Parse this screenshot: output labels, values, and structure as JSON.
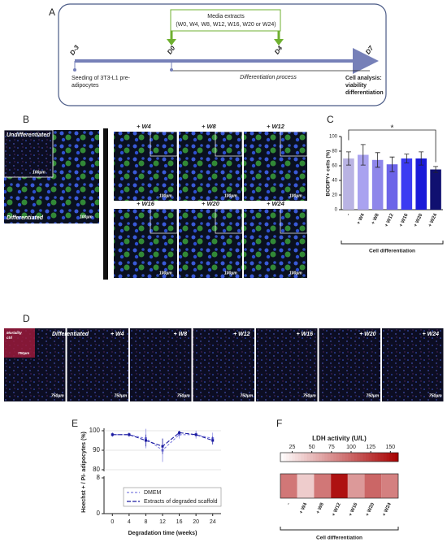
{
  "panel_labels": [
    "A",
    "B",
    "C",
    "D",
    "E",
    "F"
  ],
  "timeline": {
    "media_title": "Media extracts",
    "media_list": "(W0, W4, W8, W12, W16, W20 or W24)",
    "days": [
      "D-3",
      "D0",
      "D4",
      "D7"
    ],
    "seeding": [
      "Seeding of 3T3-L1 pre-",
      "adipocytes"
    ],
    "process": "Differentiation process",
    "analysis": [
      "Cell analysis:",
      "viability",
      "differentiation"
    ]
  },
  "panel_b": {
    "undiff": "Undifferentiated",
    "diff": "Differentiated",
    "scale": "100µm",
    "conditions": [
      "+ W4",
      "+ W8",
      "+ W12",
      "+ W16",
      "+ W20",
      "+ W24"
    ]
  },
  "panel_d": {
    "control": [
      "Mortality",
      "ctrl"
    ],
    "diff": "Differentiated",
    "scale": "750µm",
    "conditions": [
      "+ W4",
      "+ W8",
      "+ W12",
      "+ W16",
      "+ W20",
      "+ W24"
    ]
  },
  "chart_data": [
    {
      "type": "bar",
      "y_label": "BODIPY+ cells (%)",
      "categories": [
        "-",
        "+ W4",
        "+ W8",
        "+ W12",
        "+ W16",
        "+ W20",
        "+ W24"
      ],
      "values": [
        70,
        75,
        68,
        62,
        70,
        70,
        55
      ],
      "errors": [
        9,
        14,
        10,
        10,
        6,
        9,
        4
      ],
      "colors": [
        "#b9b3e3",
        "#a9a2f0",
        "#8e86ea",
        "#6c64e8",
        "#3b3bf2",
        "#1a1ad8",
        "#101070"
      ],
      "ylim": [
        0,
        100
      ],
      "yticks": [
        0,
        20,
        40,
        60,
        80,
        100
      ],
      "significance": "*",
      "group_label": "Cell differentiation"
    },
    {
      "type": "line",
      "y_label": "Hoechst + / PI- adipocytes (%)",
      "x_label": "Degradation time (weeks)",
      "x": [
        0,
        4,
        8,
        12,
        16,
        20,
        24
      ],
      "series": [
        {
          "name": "DMEM",
          "color": "#8080e0",
          "dash": "3,2",
          "values": [
            98,
            98,
            96,
            90,
            98,
            98,
            96
          ],
          "errors": [
            1,
            1,
            5,
            6,
            2,
            2,
            3
          ]
        },
        {
          "name": "Extracts of degraded scaffold",
          "color": "#1a1aa0",
          "dash": "5,2",
          "values": [
            98,
            98,
            95,
            92,
            99,
            98,
            95
          ],
          "errors": [
            1,
            1,
            3,
            4,
            1,
            1,
            2
          ]
        }
      ],
      "xlim": [
        -2,
        26
      ],
      "xticks": [
        0,
        4,
        8,
        12,
        16,
        20,
        24
      ],
      "ylim": [
        80,
        100
      ],
      "yticks": [
        80,
        90,
        100
      ],
      "lower_ylim": [
        0,
        8
      ],
      "lower_yticks": [
        0,
        8
      ]
    },
    {
      "type": "heatmap",
      "title": "LDH activity (U/L)",
      "categories": [
        "-",
        "+ W4",
        "+ W8",
        "+ W12",
        "+ W16",
        "+ W20",
        "+ W24"
      ],
      "values": [
        90,
        40,
        90,
        150,
        70,
        100,
        85
      ],
      "clim": [
        10,
        160
      ],
      "cticks": [
        25,
        50,
        75,
        100,
        125,
        150
      ],
      "color_low": "#ffffff",
      "color_high": "#a80000",
      "group_label": "Cell differentiation"
    }
  ]
}
